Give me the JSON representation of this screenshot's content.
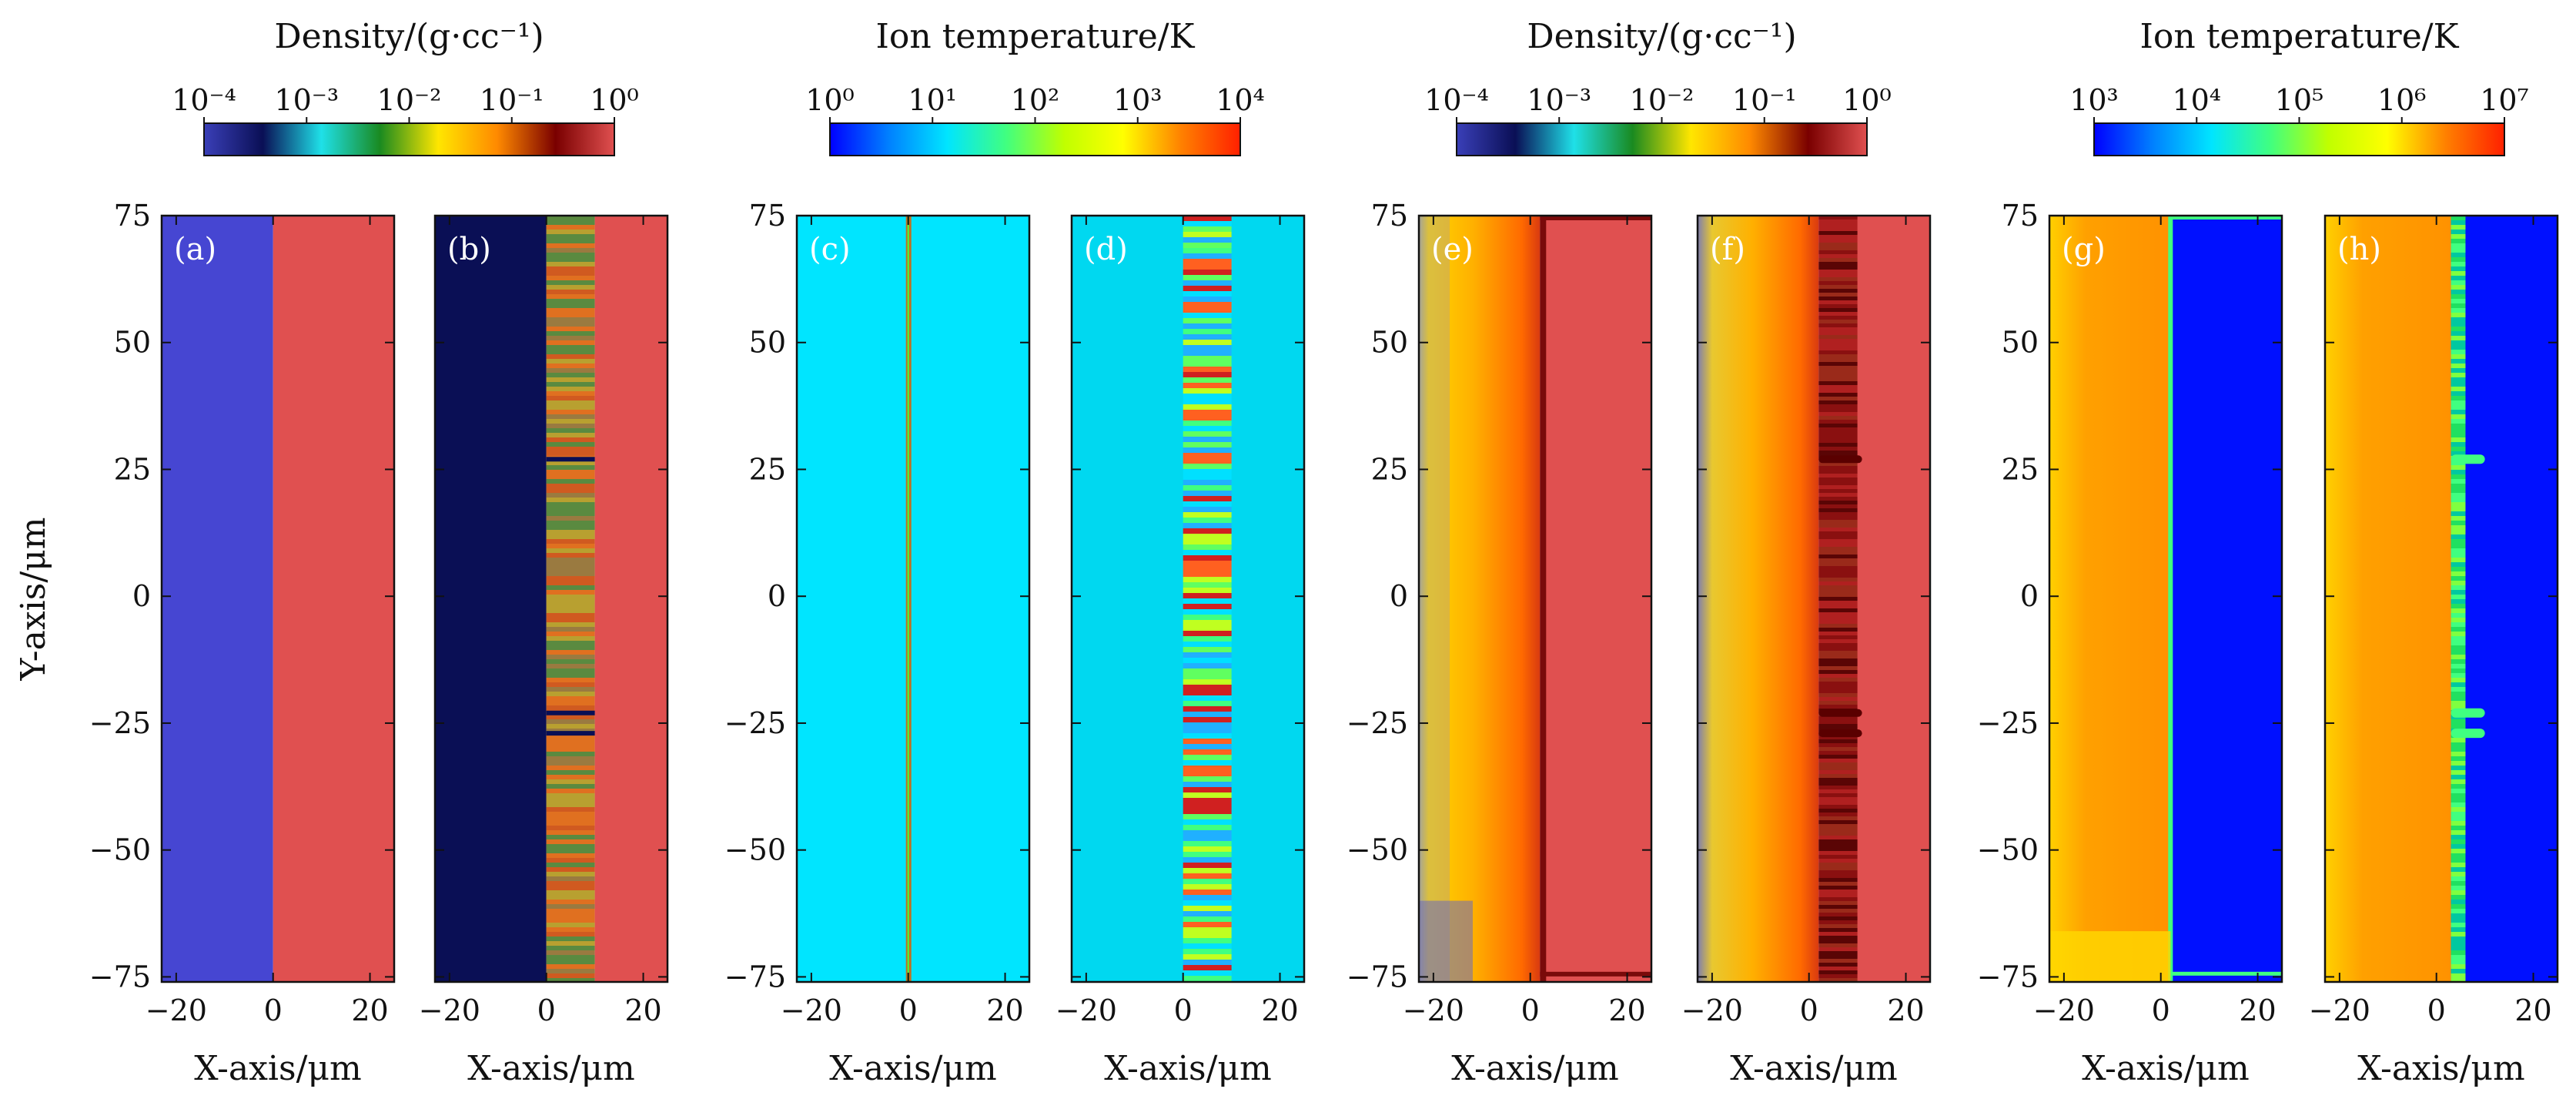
{
  "chart_data": {
    "type": "heatmap",
    "ylabel": "Y-axis/μm",
    "xlabel": "X-axis/μm",
    "xlim": [
      -23,
      25
    ],
    "ylim": [
      -76,
      75
    ],
    "x_ticks": [
      "−20",
      "0",
      "20"
    ],
    "y_ticks": [
      "75",
      "50",
      "25",
      "0",
      "−25",
      "−50",
      "−75"
    ],
    "colorbars": [
      {
        "title": "Density/(g·cc⁻¹)",
        "ticks": [
          "10⁻⁴",
          "10⁻³",
          "10⁻²",
          "10⁻¹",
          "10⁰"
        ],
        "colors": [
          "#3a3fb8",
          "#0a0f55",
          "#1fe0e8",
          "#1a8a20",
          "#ffe600",
          "#ff8a00",
          "#7a0000",
          "#e05050"
        ]
      },
      {
        "title": "Ion temperature/K",
        "ticks": [
          "10⁰",
          "10¹",
          "10²",
          "10³",
          "10⁴"
        ],
        "colors": [
          "#0000ff",
          "#0080ff",
          "#00e5ff",
          "#40ff80",
          "#c0ff00",
          "#ffff00",
          "#ff8000",
          "#ff2000"
        ]
      },
      {
        "title": "Density/(g·cc⁻¹)",
        "ticks": [
          "10⁻⁴",
          "10⁻³",
          "10⁻²",
          "10⁻¹",
          "10⁰"
        ],
        "colors": [
          "#3a3fb8",
          "#0a0f55",
          "#1fe0e8",
          "#1a8a20",
          "#ffe600",
          "#ff8a00",
          "#7a0000",
          "#e05050"
        ]
      },
      {
        "title": "Ion temperature/K",
        "ticks": [
          "10³",
          "10⁴",
          "10⁵",
          "10⁶",
          "10⁷"
        ],
        "colors": [
          "#0000ff",
          "#0080ff",
          "#00e5ff",
          "#40ff80",
          "#c0ff00",
          "#ffff00",
          "#ff8000",
          "#ff2000"
        ]
      }
    ],
    "panels": [
      {
        "label": "(a)",
        "colorbar": 0,
        "show_ylabel": true
      },
      {
        "label": "(b)",
        "colorbar": 0,
        "show_ylabel": false
      },
      {
        "label": "(c)",
        "colorbar": 1,
        "show_ylabel": true
      },
      {
        "label": "(d)",
        "colorbar": 1,
        "show_ylabel": false
      },
      {
        "label": "(e)",
        "colorbar": 2,
        "show_ylabel": true
      },
      {
        "label": "(f)",
        "colorbar": 2,
        "show_ylabel": false
      },
      {
        "label": "(g)",
        "colorbar": 3,
        "show_ylabel": true
      },
      {
        "label": "(h)",
        "colorbar": 3,
        "show_ylabel": false
      }
    ]
  },
  "colors": {
    "vacuum_blue": "#4646d2",
    "solid_red": "#e05050",
    "dark_navy": "#0a0f55",
    "cyan_bg": "#00e5ff",
    "plasma_orange": "#ff9a00",
    "plasma_yellow": "#ffe000",
    "cold_blue": "#0010ff",
    "dark_red": "#7a0a0a"
  }
}
